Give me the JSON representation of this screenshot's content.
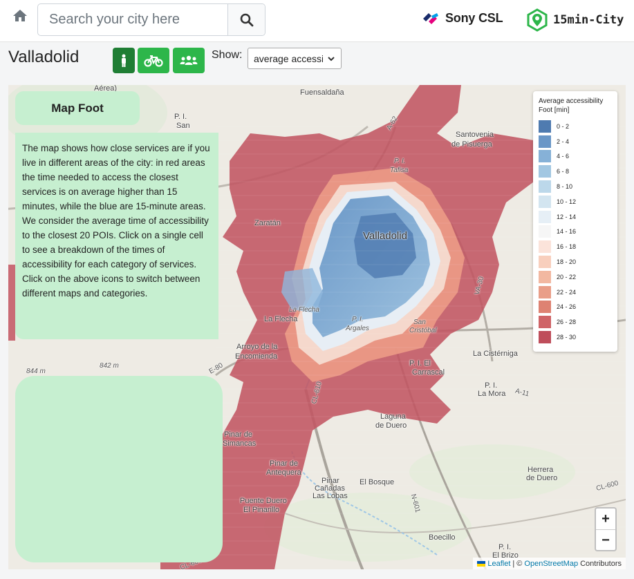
{
  "header": {
    "search_placeholder": "Search your city here",
    "brand_sony": "Sony CSL",
    "brand_15min": "15min-City"
  },
  "city": {
    "name": "Valladolid"
  },
  "modes": [
    "foot",
    "bike",
    "people"
  ],
  "show": {
    "label": "Show:",
    "selected": "average accessibility"
  },
  "panel": {
    "title": "Map Foot",
    "description": "The map shows how close services are if you live in different areas of the city: in red areas the time needed to access the closest services is on average higher than 15 minutes, while the blue are 15-minute areas. We consider the average time of accessibility to the closest 20 POIs. Click on a single cell to see a breakdown of the times of accessibility for each category of services. Click on the above icons to switch between different maps and categories."
  },
  "legend": {
    "title": "Average accessibility Foot [min]",
    "items": [
      {
        "label": "0 - 2",
        "color": "#4f7bb0"
      },
      {
        "label": "2 - 4",
        "color": "#6a97c7"
      },
      {
        "label": "4 - 6",
        "color": "#86b1d7"
      },
      {
        "label": "6 - 8",
        "color": "#a2c7e2"
      },
      {
        "label": "8 - 10",
        "color": "#bcd8ea"
      },
      {
        "label": "10 - 12",
        "color": "#d3e5f0"
      },
      {
        "label": "12 - 14",
        "color": "#e6eff6"
      },
      {
        "label": "14 - 16",
        "color": "#f6f6f6"
      },
      {
        "label": "16 - 18",
        "color": "#fbe3da"
      },
      {
        "label": "18 - 20",
        "color": "#f8cfbd"
      },
      {
        "label": "20 - 22",
        "color": "#f2b8a1"
      },
      {
        "label": "22 - 24",
        "color": "#e99e88"
      },
      {
        "label": "24 - 26",
        "color": "#de8272"
      },
      {
        "label": "26 - 28",
        "color": "#cf6467"
      },
      {
        "label": "28 - 30",
        "color": "#bf4e5b"
      }
    ]
  },
  "map_labels": [
    {
      "text": "Aérea)"
    },
    {
      "text": "P. I."
    },
    {
      "text": "San"
    },
    {
      "text": "Fuensaldaña"
    },
    {
      "text": "Santovenia"
    },
    {
      "text": "de Pisuerga"
    },
    {
      "text": "P. I."
    },
    {
      "text": "Tafisa"
    },
    {
      "text": "Zaratán"
    },
    {
      "text": "Valladolid"
    },
    {
      "text": "La Flecha"
    },
    {
      "text": "La Flecha"
    },
    {
      "text": "P. I."
    },
    {
      "text": "Argales"
    },
    {
      "text": "San"
    },
    {
      "text": "Cristóbal"
    },
    {
      "text": "Arroyo de la"
    },
    {
      "text": "Encomienda"
    },
    {
      "text": "842 m"
    },
    {
      "text": "844 m"
    },
    {
      "text": "P. I. El"
    },
    {
      "text": "Carrascal"
    },
    {
      "text": "La Cistérniga"
    },
    {
      "text": "P. I."
    },
    {
      "text": "La Mora"
    },
    {
      "text": "Laguna"
    },
    {
      "text": "de Duero"
    },
    {
      "text": "Pinar de"
    },
    {
      "text": "Simancas"
    },
    {
      "text": "Pinar de"
    },
    {
      "text": "Antequera"
    },
    {
      "text": "Pinar"
    },
    {
      "text": "Cañadas"
    },
    {
      "text": "Las Lobas"
    },
    {
      "text": "El Bosque"
    },
    {
      "text": "Herrera"
    },
    {
      "text": "de Duero"
    },
    {
      "text": "Puente Duero"
    },
    {
      "text": "El Pinarillo"
    },
    {
      "text": "Boecillo"
    },
    {
      "text": "P. I."
    },
    {
      "text": "El Brizo"
    },
    {
      "text": "A-62"
    },
    {
      "text": "VA-30"
    },
    {
      "text": "E-80"
    },
    {
      "text": "CL-610"
    },
    {
      "text": "A-11"
    },
    {
      "text": "N-601"
    },
    {
      "text": "CL-600"
    },
    {
      "text": "CL-600"
    }
  ],
  "zoom": {
    "in": "+",
    "out": "−"
  },
  "attribution": {
    "leaflet": "Leaflet",
    "sep": "| ©",
    "osm": "OpenStreetMap",
    "contrib": "Contributors"
  }
}
